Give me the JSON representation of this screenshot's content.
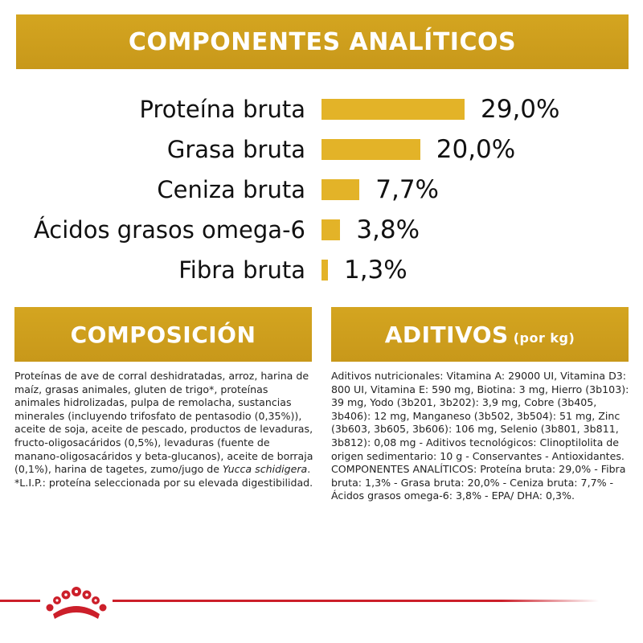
{
  "header": {
    "title": "COMPONENTES ANALÍTICOS"
  },
  "chart_data": {
    "type": "bar",
    "orientation": "horizontal",
    "categories": [
      "Proteína bruta",
      "Grasa bruta",
      "Ceniza bruta",
      "Ácidos grasos omega-6",
      "Fibra bruta"
    ],
    "values": [
      29.0,
      20.0,
      7.7,
      3.8,
      1.3
    ],
    "value_labels": [
      "29,0%",
      "20,0%",
      "7,7%",
      "3,8%",
      "1,3%"
    ],
    "unit": "%",
    "xlim": [
      0,
      29.0
    ],
    "bar_color": "#e3b328"
  },
  "composicion": {
    "title": "COMPOSICIÓN",
    "text_main": "Proteínas de ave de corral deshidratadas, arroz, harina de maíz, grasas animales, gluten de trigo*, proteínas animales hidrolizadas, pulpa de remolacha, sustancias minerales (incluyendo trifosfato de pentasodio (0,35%)), aceite de soja, aceite de pescado, productos de levaduras, fructo-oligosacáridos (0,5%), levaduras (fuente de manano-oligosacáridos y beta-glucanos), aceite de borraja (0,1%), harina de tagetes, zumo/jugo de ",
    "text_italic": "Yucca schidigera",
    "text_end": ". *L.I.P.: proteína seleccionada por su elevada digestibilidad."
  },
  "aditivos": {
    "title": "ADITIVOS",
    "title_suffix": "(por kg)",
    "text": "Aditivos nutricionales: Vitamina A: 29000 UI, Vitamina D3: 800 UI, Vitamina E: 590 mg, Biotina: 3 mg, Hierro (3b103): 39 mg, Yodo (3b201, 3b202): 3,9 mg, Cobre (3b405, 3b406): 12 mg, Manganeso (3b502, 3b504): 51 mg, Zinc (3b603, 3b605, 3b606): 106 mg, Selenio (3b801, 3b811, 3b812): 0,08 mg - Aditivos tecnológicos: Clinoptilolita de origen sedimentario: 10 g - Conservantes - Antioxidantes. COMPONENTES ANALÍTICOS: Proteína bruta: 29,0% - Fibra bruta: 1,3% - Grasa bruta: 20,0% - Ceniza bruta: 7,7% - Ácidos grasos omega-6: 3,8% - EPA/ DHA: 0,3%."
  },
  "colors": {
    "banner": "#d4a520",
    "bar": "#e3b328",
    "brand_red": "#cc1f2a"
  },
  "footer": {
    "logo_icon": "royal-canin-crown-icon"
  }
}
